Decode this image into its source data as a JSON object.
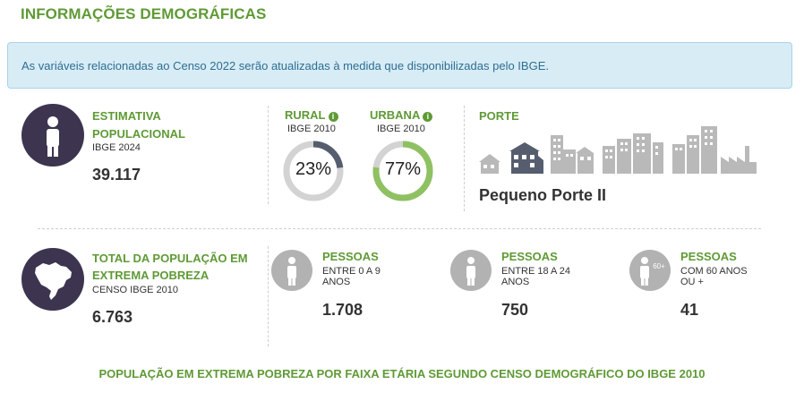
{
  "header": {
    "title": "INFORMAÇÕES DEMOGRÁFICAS"
  },
  "alert": {
    "text": "As variáveis relacionadas ao Censo 2022 serão atualizadas à medida que disponibilizadas pelo IBGE."
  },
  "population": {
    "label_line1": "ESTIMATIVA",
    "label_line2": "POPULACIONAL",
    "source": "IBGE 2024",
    "value": "39.117",
    "icon": "person-icon"
  },
  "rural": {
    "label": "RURAL",
    "source": "IBGE 2010",
    "percent_text": "23%",
    "percent": 23,
    "color": "#555d6e",
    "icon": "info-icon"
  },
  "urbana": {
    "label": "URBANA",
    "source": "IBGE 2010",
    "percent_text": "77%",
    "percent": 77,
    "color": "#8fc162",
    "icon": "info-icon"
  },
  "porte": {
    "label": "PORTE",
    "value": "Pequeno Porte II",
    "icon": "city-size-icons",
    "active_color": "#555d6e",
    "inactive_color": "#b9b9b9"
  },
  "poverty": {
    "label_line1": "TOTAL DA POPULAÇÃO EM",
    "label_line2": "EXTREMA POBREZA",
    "source": "CENSO IBGE 2010",
    "value": "6.763",
    "icon": "brazil-map-icon"
  },
  "age_groups": [
    {
      "label": "PESSOAS",
      "sub_line1": "ENTRE 0 A 9",
      "sub_line2": "ANOS",
      "value": "1.708",
      "icon": "person-icon"
    },
    {
      "label": "PESSOAS",
      "sub_line1": "ENTRE 18 A 24",
      "sub_line2": "ANOS",
      "value": "750",
      "icon": "person-icon"
    },
    {
      "label": "PESSOAS",
      "sub_line1": "COM 60 ANOS",
      "sub_line2": "OU +",
      "value": "41",
      "icon": "elderly-person-icon",
      "badge": "60+"
    }
  ],
  "footer": {
    "title": "POPULAÇÃO EM EXTREMA POBREZA POR FAIXA ETÁRIA SEGUNDO CENSO DEMOGRÁFICO DO IBGE 2010"
  },
  "colors": {
    "accent": "#5f9a35",
    "icon_dark": "#3d3450",
    "icon_gray": "#b2b2b2",
    "alert_bg": "#d8ecf6",
    "alert_text": "#2d6e90"
  }
}
